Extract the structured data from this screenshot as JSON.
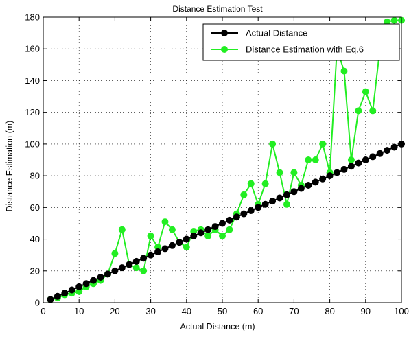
{
  "chart_data": {
    "type": "line",
    "title": "Distance Estimation Test",
    "xlabel": "Actual Distance (m)",
    "ylabel": "Distance Estimation (m)",
    "xlim": [
      0,
      100
    ],
    "ylim": [
      0,
      180
    ],
    "xticks": [
      0,
      10,
      20,
      30,
      40,
      50,
      60,
      70,
      80,
      90,
      100
    ],
    "yticks": [
      0,
      20,
      40,
      60,
      80,
      100,
      120,
      140,
      160,
      180
    ],
    "grid": true,
    "legend_position": "top-right",
    "x": [
      2,
      4,
      6,
      8,
      10,
      12,
      14,
      16,
      18,
      20,
      22,
      24,
      26,
      28,
      30,
      32,
      34,
      36,
      38,
      40,
      42,
      44,
      46,
      48,
      50,
      52,
      54,
      56,
      58,
      60,
      62,
      64,
      66,
      68,
      70,
      72,
      74,
      76,
      78,
      80,
      82,
      84,
      86,
      88,
      90,
      92,
      94,
      96,
      98,
      100
    ],
    "series": [
      {
        "name": "Actual Distance",
        "color": "#000000",
        "values": [
          2,
          4,
          6,
          8,
          10,
          12,
          14,
          16,
          18,
          20,
          22,
          24,
          26,
          28,
          30,
          32,
          34,
          36,
          38,
          40,
          42,
          44,
          46,
          48,
          50,
          52,
          54,
          56,
          58,
          60,
          62,
          64,
          66,
          68,
          70,
          72,
          74,
          76,
          78,
          80,
          82,
          84,
          86,
          88,
          90,
          92,
          94,
          96,
          98,
          100
        ]
      },
      {
        "name": "Distance Estimation with Eq.6",
        "color": "#22ee22",
        "values": [
          2,
          3,
          5,
          6,
          7,
          10,
          12,
          14,
          18,
          31,
          46,
          24,
          22,
          20,
          42,
          35,
          51,
          46,
          38,
          35,
          45,
          46,
          42,
          46,
          42,
          46,
          56,
          68,
          75,
          62,
          75,
          100,
          82,
          62,
          82,
          74,
          90,
          90,
          100,
          82,
          160,
          146,
          90,
          121,
          133,
          121,
          160,
          177,
          178,
          178
        ]
      }
    ]
  }
}
